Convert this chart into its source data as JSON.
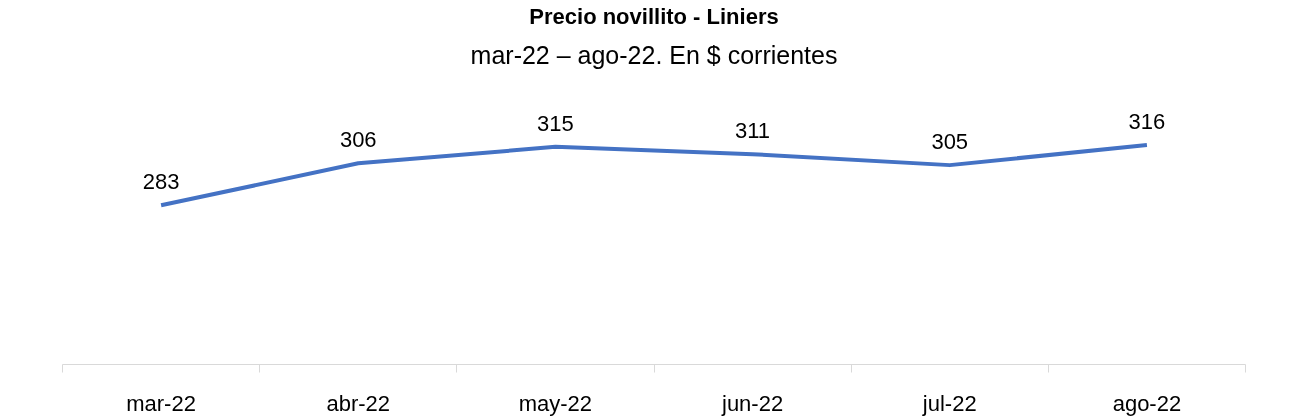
{
  "chart_data": {
    "type": "line",
    "title": "Precio novillito - Liniers",
    "subtitle": "mar-22 – ago-22. En $ corrientes",
    "categories": [
      "mar-22",
      "abr-22",
      "may-22",
      "jun-22",
      "jul-22",
      "ago-22"
    ],
    "series": [
      {
        "color": "#4472c4",
        "values": [
          283,
          306,
          315,
          311,
          305,
          316
        ]
      }
    ],
    "tick_labels": "x",
    "data_labels": true,
    "marker": "none",
    "line_style": "solid"
  }
}
